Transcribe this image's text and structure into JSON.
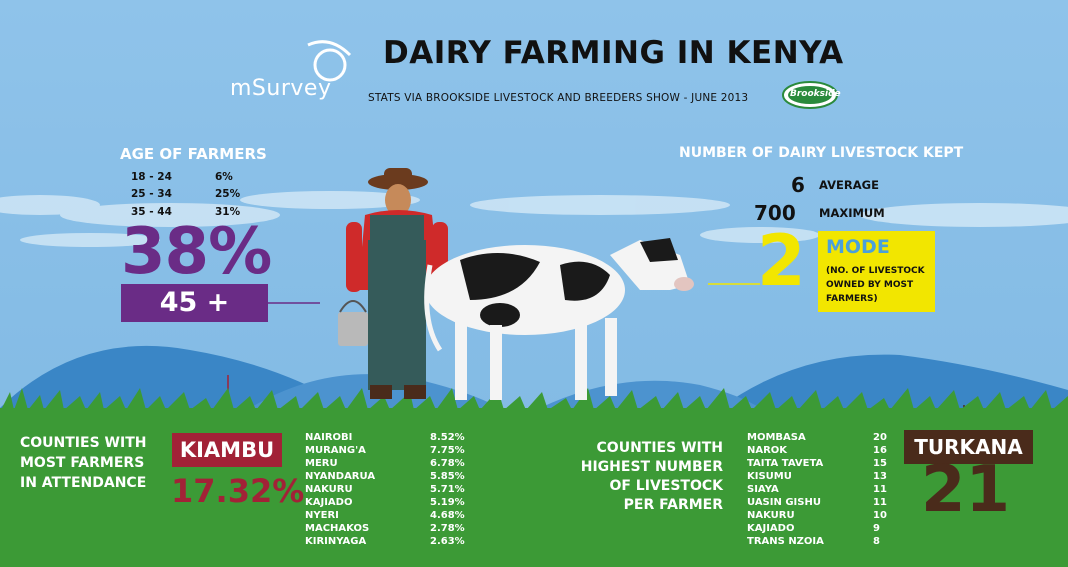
{
  "header": {
    "title": "DAIRY FARMING IN KENYA",
    "subtitle": "STATS VIA BROOKSIDE LIVESTOCK AND BREEDERS SHOW  - JUNE 2013",
    "logo_left": "mSurvey",
    "logo_right": "Brookside"
  },
  "age": {
    "title": "AGE OF FARMERS",
    "rows": [
      {
        "range": "18 - 24",
        "pct": "6%"
      },
      {
        "range": "25 - 34",
        "pct": "25%"
      },
      {
        "range": "35 - 44",
        "pct": "31%"
      }
    ],
    "big_pct": "38%",
    "big_band": "45 +"
  },
  "livestock": {
    "title": "NUMBER OF DAIRY LIVESTOCK KEPT",
    "average_value": "6",
    "average_label": "AVERAGE",
    "maximum_value": "700",
    "maximum_label": "MAXIMUM",
    "mode_value": "2",
    "mode_label": "MODE",
    "mode_note": "(NO. OF LIVESTOCK OWNED BY MOST FARMERS)"
  },
  "counties_attendance": {
    "title_line1": "COUNTIES WITH",
    "title_line2": "MOST FARMERS",
    "title_line3": "IN ATTENDANCE",
    "top_name": "KIAMBU",
    "top_pct": "17.32%",
    "rows": [
      {
        "name": "NAIROBI",
        "value": "8.52%"
      },
      {
        "name": "MURANG'A",
        "value": "7.75%"
      },
      {
        "name": "MERU",
        "value": "6.78%"
      },
      {
        "name": "NYANDARUA",
        "value": "5.85%"
      },
      {
        "name": "NAKURU",
        "value": "5.71%"
      },
      {
        "name": "KAJIADO",
        "value": "5.19%"
      },
      {
        "name": "NYERI",
        "value": "4.68%"
      },
      {
        "name": "MACHAKOS",
        "value": "2.78%"
      },
      {
        "name": "KIRINYAGA",
        "value": "2.63%"
      }
    ]
  },
  "counties_livestock": {
    "title_line1": "COUNTIES WITH",
    "title_line2": "HIGHEST NUMBER",
    "title_line3": "OF LIVESTOCK",
    "title_line4": "PER FARMER",
    "top_name": "TURKANA",
    "top_value": "21",
    "rows": [
      {
        "name": "MOMBASA",
        "value": "20"
      },
      {
        "name": "NAROK",
        "value": "16"
      },
      {
        "name": "TAITA TAVETA",
        "value": "15"
      },
      {
        "name": "KISUMU",
        "value": "13"
      },
      {
        "name": "SIAYA",
        "value": "11"
      },
      {
        "name": "UASIN GISHU",
        "value": "11"
      },
      {
        "name": "NAKURU",
        "value": "10"
      },
      {
        "name": "KAJIADO",
        "value": "9"
      },
      {
        "name": "TRANS NZOIA",
        "value": "8"
      }
    ]
  },
  "colors": {
    "sky": "#8fc3ea",
    "ground": "#3c9a36",
    "purple": "#6a2c86",
    "yellow": "#f2e600",
    "maroon": "#a22237",
    "brown": "#4a2b1b"
  }
}
